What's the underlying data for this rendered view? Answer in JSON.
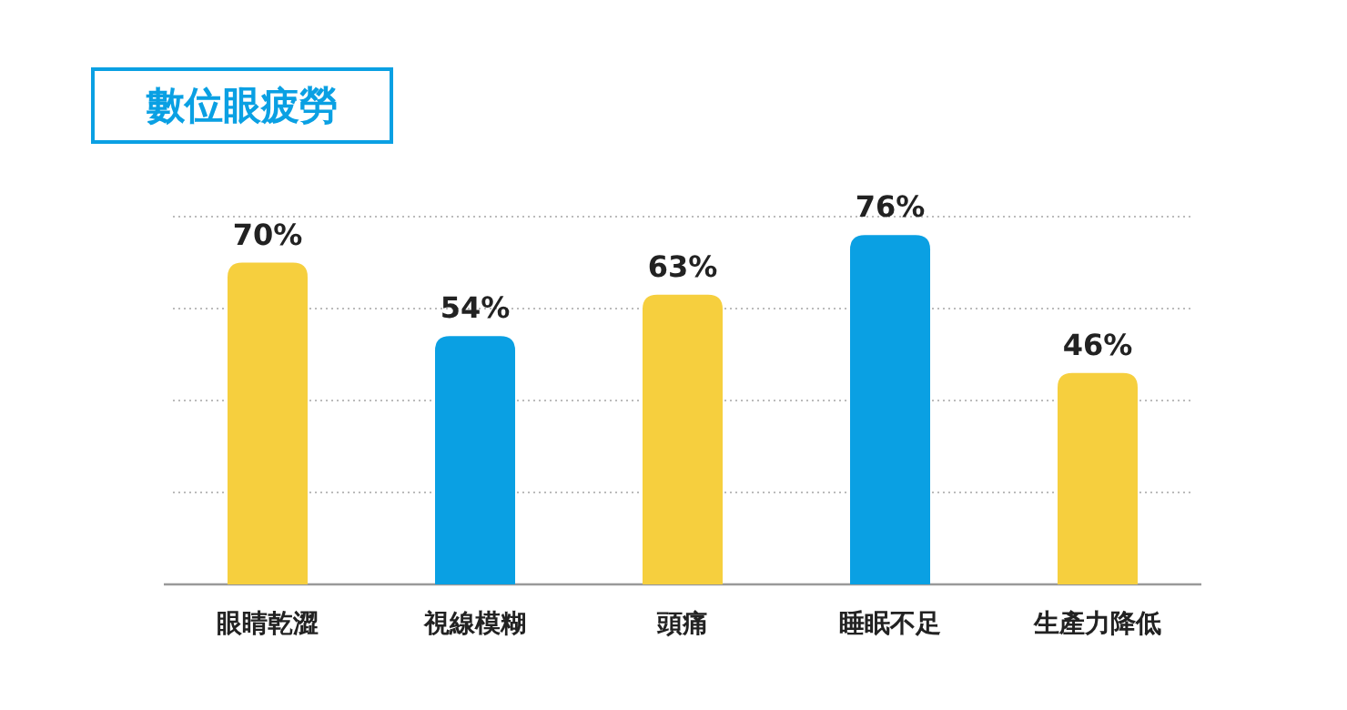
{
  "chart_data": {
    "type": "bar",
    "title": "數位眼疲勞",
    "categories": [
      "眼睛乾澀",
      "視線模糊",
      "頭痛",
      "睡眠不足",
      "生產力降低"
    ],
    "values": [
      70,
      54,
      63,
      76,
      46
    ],
    "colors": [
      "#f6cf3e",
      "#0aa0e3",
      "#f6cf3e",
      "#0aa0e3",
      "#f6cf3e"
    ],
    "value_labels": [
      "70%",
      "54%",
      "63%",
      "76%",
      "46%"
    ],
    "ylim": [
      0,
      80
    ],
    "yticks": [
      {
        "value": 20,
        "label": null
      },
      {
        "value": 40,
        "label": null
      },
      {
        "value": 60,
        "label": null
      },
      {
        "value": 80,
        "label": null
      }
    ],
    "grid": "y",
    "tick_labels": "x"
  }
}
